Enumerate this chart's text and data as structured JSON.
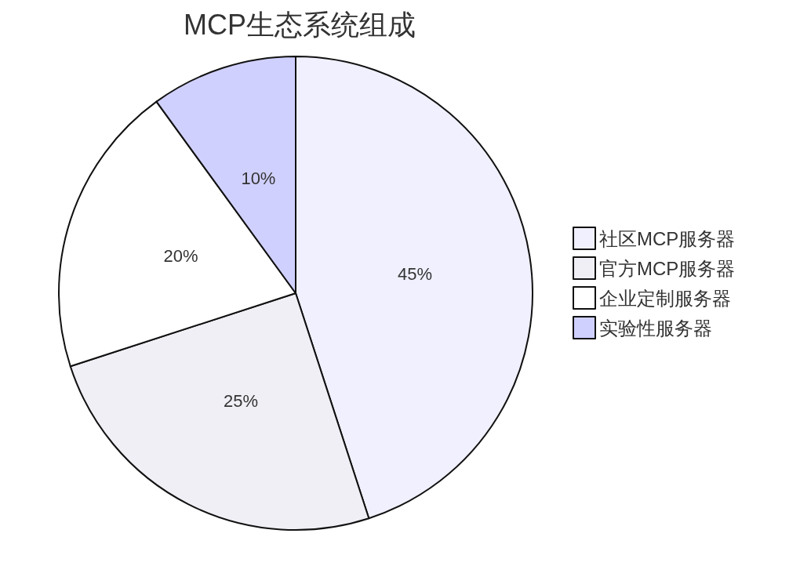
{
  "chart_data": {
    "type": "pie",
    "title": "MCP生态系统组成",
    "categories": [
      "社区MCP服务器",
      "官方MCP服务器",
      "企业定制服务器",
      "实验性服务器"
    ],
    "values": [
      45,
      25,
      20,
      10
    ],
    "value_labels": [
      "45%",
      "25%",
      "20%",
      "10%"
    ],
    "colors": [
      "#f0f0ff",
      "#f0eff5",
      "#ffffff",
      "#d0d0ff"
    ],
    "legend": "right"
  }
}
